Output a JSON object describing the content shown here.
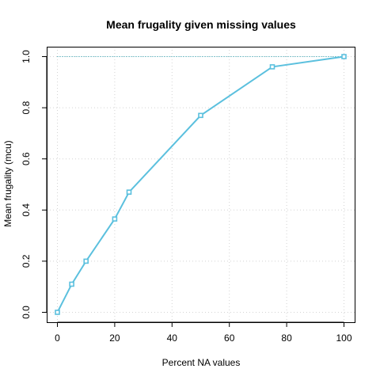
{
  "chart_data": {
    "type": "line",
    "title": "Mean frugality given missing values",
    "xlabel": "Percent NA values",
    "ylabel": "Mean frugality (mcu)",
    "xlim": [
      0,
      100
    ],
    "ylim": [
      0,
      1
    ],
    "x_ticks": [
      0,
      20,
      40,
      60,
      80,
      100
    ],
    "y_ticks": [
      0.0,
      0.2,
      0.4,
      0.6,
      0.8,
      1.0
    ],
    "x_tick_labels": [
      "0",
      "20",
      "40",
      "60",
      "80",
      "100"
    ],
    "y_tick_labels": [
      "0.0",
      "0.2",
      "0.4",
      "0.6",
      "0.8",
      "1.0"
    ],
    "grid": true,
    "reference_line": {
      "y": 1.0,
      "style": "dotted",
      "color": "#1a9aa8"
    },
    "series": [
      {
        "color": "#5bc0de",
        "marker": "square",
        "x": [
          0,
          5,
          10,
          20,
          25,
          50,
          75,
          100
        ],
        "y": [
          0.0,
          0.11,
          0.2,
          0.365,
          0.47,
          0.77,
          0.96,
          1.0
        ]
      }
    ]
  }
}
